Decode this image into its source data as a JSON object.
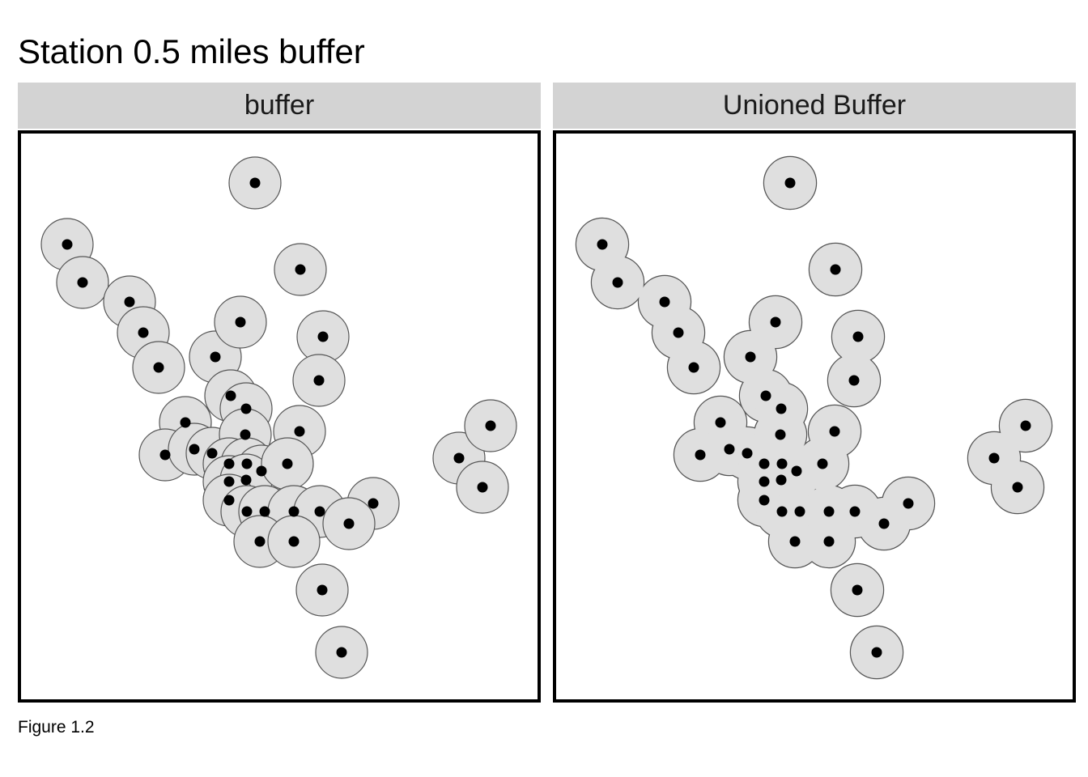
{
  "title": "Station 0.5 miles buffer",
  "caption": "Figure 1.2",
  "panels": [
    {
      "label": "buffer",
      "mode": "separate"
    },
    {
      "label": "Unioned Buffer",
      "mode": "unioned"
    }
  ],
  "colors": {
    "buffer_fill": "#dfdfdf",
    "buffer_stroke": "#555555",
    "station_point": "#000000",
    "panel_strip": "#d3d3d3",
    "panel_border": "#000000"
  },
  "buffer_radius_miles": 0.5
}
